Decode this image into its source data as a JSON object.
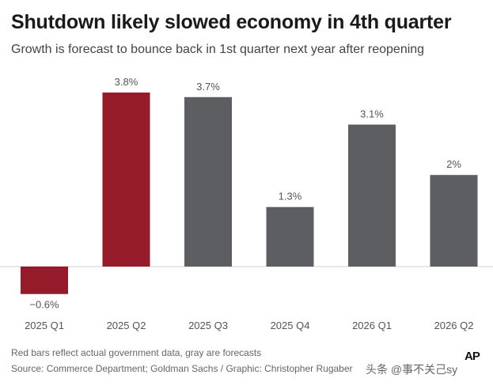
{
  "colors": {
    "actual": "#961b2a",
    "forecast": "#5d5e61",
    "baseline": "#cfcfcf"
  },
  "chart_data": {
    "type": "bar",
    "title": "Shutdown likely slowed economy in 4th quarter",
    "subtitle": "Growth is forecast to bounce back in 1st quarter next year after reopening",
    "categories": [
      "2025 Q1",
      "2025 Q2",
      "2025 Q3",
      "2025 Q4",
      "2026 Q1",
      "2026 Q2"
    ],
    "values": [
      -0.6,
      3.8,
      3.7,
      1.3,
      3.1,
      2.0
    ],
    "value_labels": [
      "−0.6%",
      "3.8%",
      "3.7%",
      "1.3%",
      "3.1%",
      "2%"
    ],
    "kind": [
      "actual",
      "actual",
      "forecast",
      "forecast",
      "forecast",
      "forecast"
    ],
    "xlabel": "",
    "ylabel": "",
    "ylim": [
      -0.6,
      3.8
    ],
    "grid": false,
    "legend": "none"
  },
  "footer": {
    "note": "Red bars reflect actual government data, gray are forecasts",
    "source": "Source: Commerce Department; Goldman Sachs / Graphic: Christopher Rugaber",
    "logo": "AP",
    "watermark": "头条 @事不关己sy"
  }
}
